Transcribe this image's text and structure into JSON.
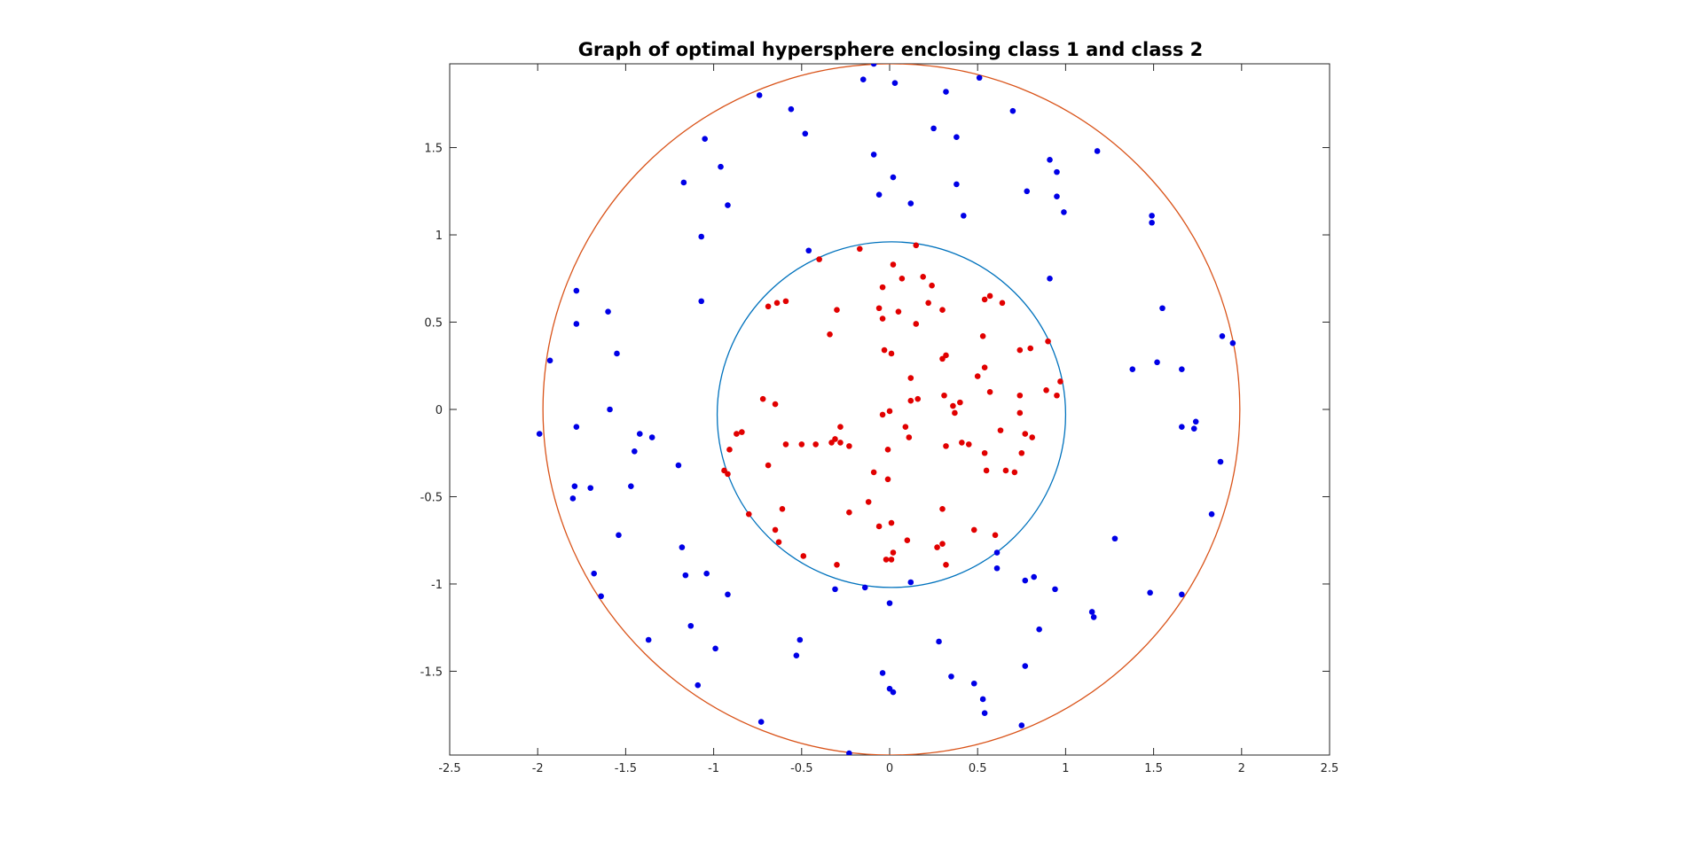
{
  "chart_data": {
    "type": "scatter",
    "title": "Graph of optimal hypersphere enclosing class 1 and class 2",
    "xlabel": "",
    "ylabel": "",
    "xlim": [
      -2.5,
      2.5
    ],
    "ylim": [
      -1.98,
      1.98
    ],
    "xticks": [
      "-2.5",
      "-2",
      "-1.5",
      "-1",
      "-0.5",
      "0",
      "0.5",
      "1",
      "1.5",
      "2",
      "2.5"
    ],
    "yticks": [
      "-1.5",
      "-1",
      "-0.5",
      "0",
      "0.5",
      "1",
      "1.5"
    ],
    "grid": false,
    "legend": "none",
    "colors": {
      "class1": "#e10000",
      "class2": "#0000e6",
      "inner_circle": "#0072bd",
      "outer_circle": "#d95319",
      "axes": "#262626"
    },
    "circles": [
      {
        "center": [
          0.01,
          -0.03
        ],
        "radius": 0.99,
        "color": "#0072bd"
      },
      {
        "center": [
          0.01,
          0.0
        ],
        "radius": 1.98,
        "color": "#d95319"
      }
    ],
    "series": [
      {
        "color": "#e10000",
        "points": [
          [
            0.15,
            0.94
          ],
          [
            -0.17,
            0.92
          ],
          [
            -0.4,
            0.86
          ],
          [
            0.02,
            0.83
          ],
          [
            0.07,
            0.75
          ],
          [
            0.19,
            0.76
          ],
          [
            0.24,
            0.71
          ],
          [
            -0.04,
            0.7
          ],
          [
            -0.59,
            0.62
          ],
          [
            -0.64,
            0.61
          ],
          [
            -0.69,
            0.59
          ],
          [
            0.54,
            0.63
          ],
          [
            0.57,
            0.65
          ],
          [
            0.64,
            0.61
          ],
          [
            0.22,
            0.61
          ],
          [
            -0.3,
            0.57
          ],
          [
            -0.06,
            0.58
          ],
          [
            0.05,
            0.56
          ],
          [
            0.3,
            0.57
          ],
          [
            -0.04,
            0.52
          ],
          [
            0.15,
            0.49
          ],
          [
            -0.34,
            0.43
          ],
          [
            0.53,
            0.42
          ],
          [
            0.9,
            0.39
          ],
          [
            0.74,
            0.34
          ],
          [
            0.8,
            0.35
          ],
          [
            -0.03,
            0.34
          ],
          [
            0.01,
            0.32
          ],
          [
            0.3,
            0.29
          ],
          [
            0.32,
            0.31
          ],
          [
            0.54,
            0.24
          ],
          [
            0.5,
            0.19
          ],
          [
            0.12,
            0.18
          ],
          [
            0.97,
            0.16
          ],
          [
            0.89,
            0.11
          ],
          [
            0.95,
            0.08
          ],
          [
            0.57,
            0.1
          ],
          [
            0.74,
            0.08
          ],
          [
            0.31,
            0.08
          ],
          [
            0.16,
            0.06
          ],
          [
            0.12,
            0.05
          ],
          [
            0.4,
            0.04
          ],
          [
            0.36,
            0.02
          ],
          [
            -0.72,
            0.06
          ],
          [
            -0.65,
            0.03
          ],
          [
            0.74,
            -0.02
          ],
          [
            0.37,
            -0.02
          ],
          [
            0.0,
            -0.01
          ],
          [
            -0.04,
            -0.03
          ],
          [
            -0.28,
            -0.1
          ],
          [
            0.09,
            -0.1
          ],
          [
            -0.84,
            -0.13
          ],
          [
            -0.87,
            -0.14
          ],
          [
            0.77,
            -0.14
          ],
          [
            0.81,
            -0.16
          ],
          [
            0.63,
            -0.12
          ],
          [
            0.11,
            -0.16
          ],
          [
            -0.31,
            -0.17
          ],
          [
            -0.33,
            -0.19
          ],
          [
            -0.28,
            -0.19
          ],
          [
            -0.23,
            -0.21
          ],
          [
            -0.42,
            -0.2
          ],
          [
            -0.5,
            -0.2
          ],
          [
            -0.59,
            -0.2
          ],
          [
            0.41,
            -0.19
          ],
          [
            0.45,
            -0.2
          ],
          [
            0.32,
            -0.21
          ],
          [
            -0.91,
            -0.23
          ],
          [
            -0.01,
            -0.23
          ],
          [
            0.54,
            -0.25
          ],
          [
            0.75,
            -0.25
          ],
          [
            0.55,
            -0.35
          ],
          [
            0.66,
            -0.35
          ],
          [
            0.71,
            -0.36
          ],
          [
            -0.69,
            -0.32
          ],
          [
            -0.94,
            -0.35
          ],
          [
            -0.92,
            -0.37
          ],
          [
            -0.09,
            -0.36
          ],
          [
            -0.01,
            -0.4
          ],
          [
            -0.12,
            -0.53
          ],
          [
            -0.61,
            -0.57
          ],
          [
            0.3,
            -0.57
          ],
          [
            -0.23,
            -0.59
          ],
          [
            -0.8,
            -0.6
          ],
          [
            0.01,
            -0.65
          ],
          [
            -0.06,
            -0.67
          ],
          [
            0.48,
            -0.69
          ],
          [
            -0.65,
            -0.69
          ],
          [
            0.6,
            -0.72
          ],
          [
            0.1,
            -0.75
          ],
          [
            -0.63,
            -0.76
          ],
          [
            0.3,
            -0.77
          ],
          [
            0.27,
            -0.79
          ],
          [
            0.02,
            -0.82
          ],
          [
            -0.49,
            -0.84
          ],
          [
            -0.02,
            -0.86
          ],
          [
            0.01,
            -0.86
          ],
          [
            -0.3,
            -0.89
          ],
          [
            0.32,
            -0.89
          ]
        ]
      },
      {
        "color": "#0000e6",
        "points": [
          [
            -0.09,
            1.98
          ],
          [
            -0.15,
            1.89
          ],
          [
            0.03,
            1.87
          ],
          [
            0.51,
            1.9
          ],
          [
            -0.74,
            1.8
          ],
          [
            0.32,
            1.82
          ],
          [
            -0.56,
            1.72
          ],
          [
            0.7,
            1.71
          ],
          [
            0.25,
            1.61
          ],
          [
            -0.48,
            1.58
          ],
          [
            0.38,
            1.56
          ],
          [
            -1.05,
            1.55
          ],
          [
            1.18,
            1.48
          ],
          [
            -0.09,
            1.46
          ],
          [
            0.91,
            1.43
          ],
          [
            -0.96,
            1.39
          ],
          [
            0.95,
            1.36
          ],
          [
            0.02,
            1.33
          ],
          [
            -1.17,
            1.3
          ],
          [
            0.38,
            1.29
          ],
          [
            0.78,
            1.25
          ],
          [
            -0.06,
            1.23
          ],
          [
            0.95,
            1.22
          ],
          [
            -0.92,
            1.17
          ],
          [
            0.12,
            1.18
          ],
          [
            0.99,
            1.13
          ],
          [
            0.42,
            1.11
          ],
          [
            1.49,
            1.11
          ],
          [
            1.49,
            1.07
          ],
          [
            -1.07,
            0.99
          ],
          [
            -0.46,
            0.91
          ],
          [
            0.91,
            0.75
          ],
          [
            -1.78,
            0.68
          ],
          [
            -1.07,
            0.62
          ],
          [
            -1.6,
            0.56
          ],
          [
            1.55,
            0.58
          ],
          [
            -1.78,
            0.49
          ],
          [
            1.89,
            0.42
          ],
          [
            1.95,
            0.38
          ],
          [
            -1.55,
            0.32
          ],
          [
            -1.93,
            0.28
          ],
          [
            1.52,
            0.27
          ],
          [
            1.38,
            0.23
          ],
          [
            1.66,
            0.23
          ],
          [
            -1.59,
            0.0
          ],
          [
            -1.78,
            -0.1
          ],
          [
            1.74,
            -0.07
          ],
          [
            1.66,
            -0.1
          ],
          [
            1.73,
            -0.11
          ],
          [
            -1.99,
            -0.14
          ],
          [
            -1.42,
            -0.14
          ],
          [
            -1.35,
            -0.16
          ],
          [
            -1.45,
            -0.24
          ],
          [
            -1.2,
            -0.32
          ],
          [
            1.88,
            -0.3
          ],
          [
            -1.47,
            -0.44
          ],
          [
            -1.79,
            -0.44
          ],
          [
            -1.7,
            -0.45
          ],
          [
            -1.8,
            -0.51
          ],
          [
            1.83,
            -0.6
          ],
          [
            -1.54,
            -0.72
          ],
          [
            1.28,
            -0.74
          ],
          [
            -1.18,
            -0.79
          ],
          [
            0.61,
            -0.82
          ],
          [
            -1.16,
            -0.95
          ],
          [
            0.82,
            -0.96
          ],
          [
            -1.68,
            -0.94
          ],
          [
            -1.04,
            -0.94
          ],
          [
            0.61,
            -0.91
          ],
          [
            0.77,
            -0.98
          ],
          [
            0.12,
            -0.99
          ],
          [
            -0.14,
            -1.02
          ],
          [
            0.94,
            -1.03
          ],
          [
            -0.31,
            -1.03
          ],
          [
            1.48,
            -1.05
          ],
          [
            1.66,
            -1.06
          ],
          [
            -0.92,
            -1.06
          ],
          [
            -1.64,
            -1.07
          ],
          [
            0.0,
            -1.11
          ],
          [
            1.15,
            -1.16
          ],
          [
            1.16,
            -1.19
          ],
          [
            -1.13,
            -1.24
          ],
          [
            0.85,
            -1.26
          ],
          [
            0.28,
            -1.33
          ],
          [
            -1.37,
            -1.32
          ],
          [
            -0.51,
            -1.32
          ],
          [
            -0.99,
            -1.37
          ],
          [
            -0.53,
            -1.41
          ],
          [
            0.77,
            -1.47
          ],
          [
            -0.04,
            -1.51
          ],
          [
            0.35,
            -1.53
          ],
          [
            0.48,
            -1.57
          ],
          [
            -1.09,
            -1.58
          ],
          [
            0.0,
            -1.6
          ],
          [
            0.02,
            -1.62
          ],
          [
            0.53,
            -1.66
          ],
          [
            0.54,
            -1.74
          ],
          [
            -0.73,
            -1.79
          ],
          [
            0.75,
            -1.81
          ],
          [
            -0.23,
            -1.97
          ]
        ]
      }
    ]
  }
}
